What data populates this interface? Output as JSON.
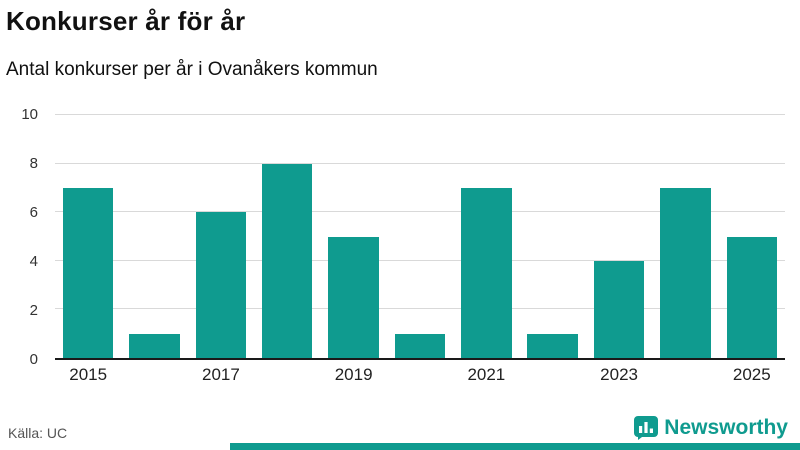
{
  "header": {
    "title": "Konkurser år för år",
    "subtitle": "Antal konkurser per år i Ovanåkers kommun"
  },
  "footer": {
    "source": "Källa: UC",
    "brand": "Newsworthy"
  },
  "colors": {
    "accent": "#0f9b8f",
    "grid": "#d9d9d9",
    "axis": "#1a1a1a"
  },
  "icons": {
    "logo": "newsworthy-bar-chart-logo-icon"
  },
  "chart_data": {
    "type": "bar",
    "title": "Konkurser år för år",
    "subtitle": "Antal konkurser per år i Ovanåkers kommun",
    "categories": [
      2015,
      2016,
      2017,
      2018,
      2019,
      2020,
      2021,
      2022,
      2023,
      2024,
      2025
    ],
    "values": [
      7,
      1,
      6,
      8,
      5,
      1,
      7,
      1,
      4,
      7,
      5
    ],
    "xlabel": "",
    "ylabel": "",
    "ylim": [
      0,
      10
    ],
    "yticks": [
      0,
      2,
      4,
      6,
      8,
      10
    ],
    "xticks": [
      2015,
      2017,
      2019,
      2021,
      2023,
      2025
    ],
    "grid": true,
    "legend": "none",
    "source": "Källa: UC"
  }
}
